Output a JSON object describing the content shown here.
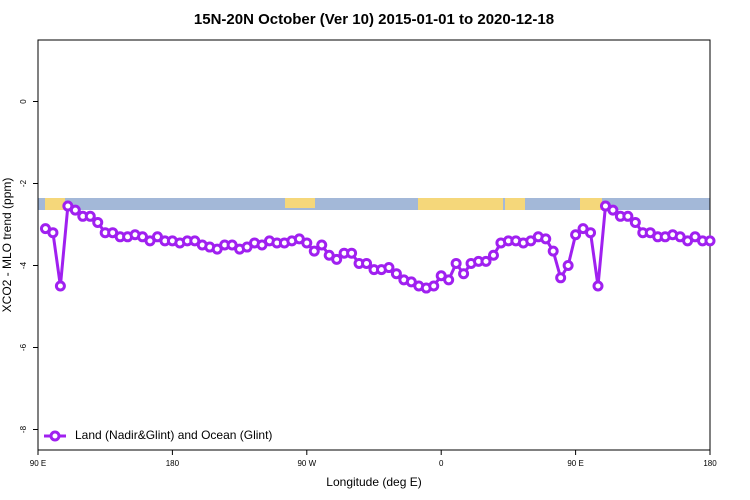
{
  "chart_data": {
    "type": "line",
    "title": "15N-20N October (Ver 10)   2015-01-01 to 2020-12-18",
    "x_label": "Longitude (deg E)",
    "y_label": "XCO2 - MLO trend (ppm)",
    "xlim": [
      90,
      540
    ],
    "ylim": [
      -8.5,
      1.5
    ],
    "xticks": [
      {
        "value": 90,
        "label": "90 E"
      },
      180,
      {
        "value": 270,
        "label": "90 W"
      },
      {
        "value": 360,
        "label": "0"
      },
      {
        "value": 450,
        "label": "90 E"
      },
      {
        "value": 540,
        "label": "180"
      }
    ],
    "yticks": [
      0,
      -2,
      -4,
      -6,
      -8
    ],
    "legend": "bottomleft",
    "x": [
      95,
      100,
      105,
      110,
      115,
      120,
      125,
      130,
      135,
      140,
      145,
      150,
      155,
      160,
      165,
      170,
      175,
      180,
      185,
      190,
      195,
      200,
      205,
      210,
      215,
      220,
      225,
      230,
      235,
      240,
      245,
      250,
      255,
      260,
      265,
      270,
      275,
      280,
      285,
      290,
      295,
      300,
      305,
      310,
      315,
      320,
      325,
      330,
      335,
      340,
      345,
      350,
      355,
      360,
      365,
      370,
      375,
      380,
      385,
      390,
      395,
      400,
      405,
      410,
      415,
      420,
      425,
      430,
      435,
      440,
      445,
      450,
      455,
      460,
      465,
      470,
      475,
      480,
      485,
      490,
      495,
      500,
      505,
      510,
      515,
      520,
      525,
      530,
      535,
      540
    ],
    "series": [
      {
        "name": "Land (Nadir&Glint) and Ocean (Glint)",
        "color": "#a020f0",
        "values": [
          -3.1,
          -3.2,
          -4.5,
          -2.55,
          -2.65,
          -2.8,
          -2.8,
          -2.95,
          -3.2,
          -3.2,
          -3.3,
          -3.3,
          -3.25,
          -3.3,
          -3.4,
          -3.3,
          -3.4,
          -3.4,
          -3.45,
          -3.4,
          -3.4,
          -3.5,
          -3.55,
          -3.6,
          -3.5,
          -3.5,
          -3.6,
          -3.55,
          -3.45,
          -3.5,
          -3.4,
          -3.45,
          -3.45,
          -3.4,
          -3.35,
          -3.45,
          -3.65,
          -3.5,
          -3.75,
          -3.85,
          -3.7,
          -3.7,
          -3.95,
          -3.95,
          -4.1,
          -4.1,
          -4.05,
          -4.2,
          -4.35,
          -4.4,
          -4.5,
          -4.55,
          -4.5,
          -4.25,
          -4.35,
          -3.95,
          -4.2,
          -3.95,
          -3.9,
          -3.9,
          -3.75,
          -3.45,
          -3.4,
          -3.4,
          -3.45,
          -3.4,
          -3.3,
          -3.35,
          -3.65,
          -4.3,
          -4.0,
          -3.25,
          -3.1,
          -3.2,
          -4.5,
          -2.55,
          -2.65,
          -2.8,
          -2.8,
          -2.95,
          -3.2,
          -3.2,
          -3.3,
          -3.3,
          -3.25,
          -3.3,
          -3.4,
          -3.3,
          -3.4,
          -3.4
        ]
      }
    ]
  }
}
